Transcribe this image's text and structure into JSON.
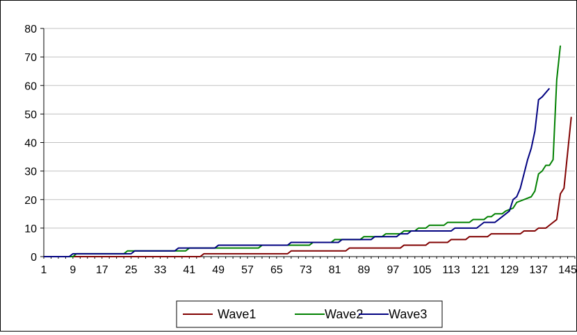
{
  "chart_data": {
    "type": "line",
    "title": "",
    "xlabel": "",
    "ylabel": "",
    "ylim": [
      0,
      80
    ],
    "yticks": [
      0,
      10,
      20,
      30,
      40,
      50,
      60,
      70,
      80
    ],
    "xlim": [
      1,
      147
    ],
    "xticks": [
      1,
      9,
      17,
      25,
      33,
      41,
      49,
      57,
      65,
      73,
      81,
      89,
      97,
      105,
      113,
      121,
      129,
      137,
      145
    ],
    "grid": "horizontal",
    "legend_position": "bottom",
    "series": [
      {
        "name": "Wave1",
        "color": "#800000",
        "points": [
          [
            1,
            0
          ],
          [
            44,
            0
          ],
          [
            45,
            1
          ],
          [
            68,
            1
          ],
          [
            69,
            2
          ],
          [
            84,
            2
          ],
          [
            85,
            3
          ],
          [
            99,
            3
          ],
          [
            100,
            4
          ],
          [
            106,
            4
          ],
          [
            107,
            5
          ],
          [
            112,
            5
          ],
          [
            113,
            6
          ],
          [
            117,
            6
          ],
          [
            118,
            7
          ],
          [
            123,
            7
          ],
          [
            124,
            8
          ],
          [
            132,
            8
          ],
          [
            133,
            9
          ],
          [
            136,
            9
          ],
          [
            137,
            10
          ],
          [
            139,
            10
          ],
          [
            140,
            11
          ],
          [
            141,
            12
          ],
          [
            142,
            13
          ],
          [
            143,
            22
          ],
          [
            144,
            24
          ],
          [
            146,
            49
          ]
        ]
      },
      {
        "name": "Wave2",
        "color": "#008000",
        "points": [
          [
            1,
            0
          ],
          [
            9,
            0
          ],
          [
            10,
            1
          ],
          [
            23,
            1
          ],
          [
            24,
            2
          ],
          [
            40,
            2
          ],
          [
            41,
            3
          ],
          [
            60,
            3
          ],
          [
            61,
            4
          ],
          [
            74,
            4
          ],
          [
            75,
            5
          ],
          [
            80,
            5
          ],
          [
            81,
            6
          ],
          [
            88,
            6
          ],
          [
            89,
            7
          ],
          [
            94,
            7
          ],
          [
            95,
            8
          ],
          [
            99,
            8
          ],
          [
            100,
            9
          ],
          [
            103,
            9
          ],
          [
            104,
            10
          ],
          [
            106,
            10
          ],
          [
            107,
            11
          ],
          [
            111,
            11
          ],
          [
            112,
            12
          ],
          [
            118,
            12
          ],
          [
            119,
            13
          ],
          [
            122,
            13
          ],
          [
            123,
            14
          ],
          [
            124,
            14
          ],
          [
            125,
            15
          ],
          [
            127,
            15
          ],
          [
            128,
            16
          ],
          [
            130,
            17
          ],
          [
            131,
            19
          ],
          [
            133,
            20
          ],
          [
            135,
            21
          ],
          [
            136,
            23
          ],
          [
            137,
            29
          ],
          [
            138,
            30
          ],
          [
            139,
            32
          ],
          [
            140,
            32
          ],
          [
            141,
            34
          ],
          [
            142,
            62
          ],
          [
            143,
            74
          ]
        ]
      },
      {
        "name": "Wave3",
        "color": "#000080",
        "points": [
          [
            1,
            0
          ],
          [
            8,
            0
          ],
          [
            9,
            1
          ],
          [
            25,
            1
          ],
          [
            26,
            2
          ],
          [
            37,
            2
          ],
          [
            38,
            3
          ],
          [
            48,
            3
          ],
          [
            49,
            4
          ],
          [
            68,
            4
          ],
          [
            69,
            5
          ],
          [
            82,
            5
          ],
          [
            83,
            6
          ],
          [
            91,
            6
          ],
          [
            92,
            7
          ],
          [
            98,
            7
          ],
          [
            99,
            8
          ],
          [
            101,
            8
          ],
          [
            102,
            9
          ],
          [
            113,
            9
          ],
          [
            114,
            10
          ],
          [
            120,
            10
          ],
          [
            121,
            11
          ],
          [
            122,
            12
          ],
          [
            125,
            12
          ],
          [
            126,
            13
          ],
          [
            127,
            14
          ],
          [
            128,
            15
          ],
          [
            129,
            16
          ],
          [
            130,
            20
          ],
          [
            131,
            21
          ],
          [
            132,
            24
          ],
          [
            133,
            29
          ],
          [
            134,
            34
          ],
          [
            135,
            38
          ],
          [
            136,
            44
          ],
          [
            137,
            55
          ],
          [
            138,
            56
          ],
          [
            140,
            59
          ]
        ]
      }
    ]
  }
}
